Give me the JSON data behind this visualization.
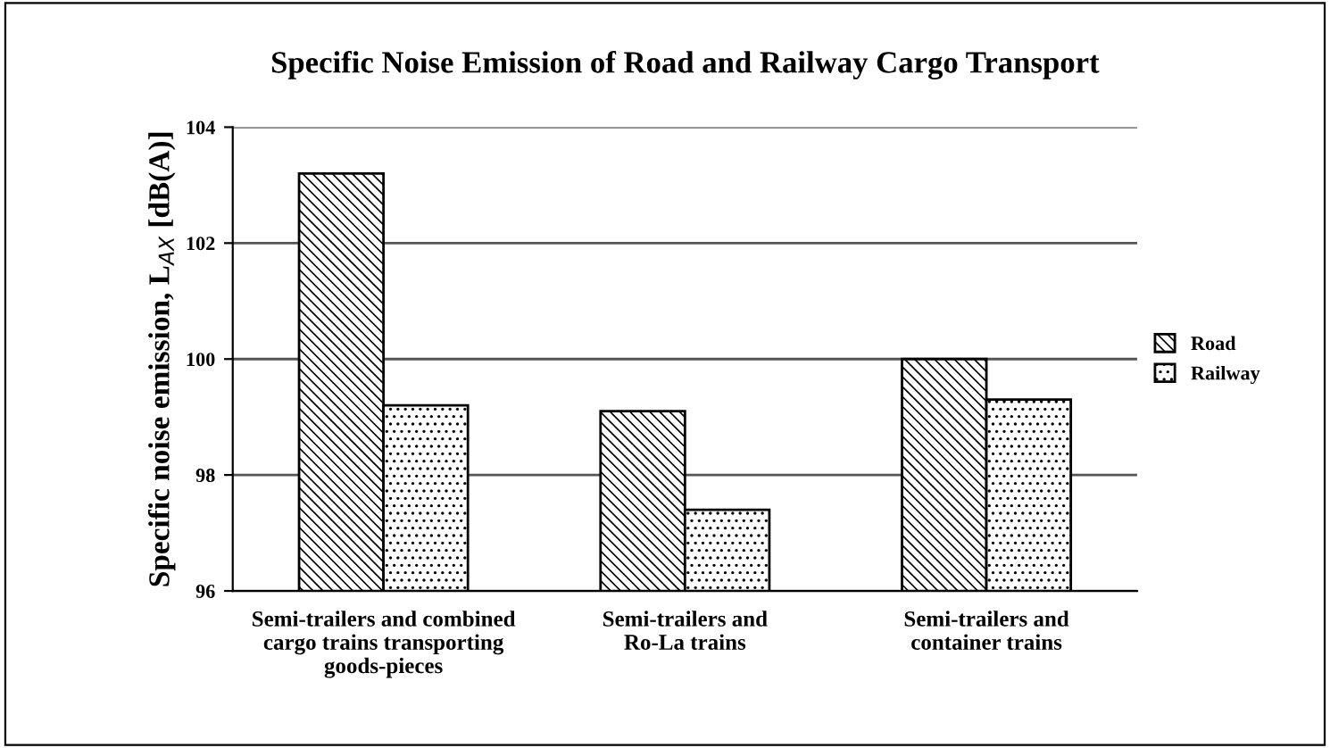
{
  "chart_data": {
    "type": "bar",
    "title": "Specific Noise Emission of Road and Railway Cargo Transport",
    "ylabel": "Specific noise emission, L$_{AX}$ [dB(A)]",
    "categories": [
      "Semi-trailers and combined\ncargo trains transporting\ngoods-pieces",
      "Semi-trailers and\nRo-La trains",
      "Semi-trailers and\ncontainer trains"
    ],
    "series": [
      {
        "name": "Road",
        "color": "#000000",
        "values": [
          103.2,
          99.1,
          100.0
        ]
      },
      {
        "name": "Railway",
        "color": "#000000",
        "values": [
          99.2,
          97.4,
          99.3
        ]
      }
    ],
    "ylim": [
      96,
      104
    ],
    "yticks": [
      96,
      98,
      100,
      102,
      104
    ],
    "grid": "y",
    "legend": "right"
  }
}
